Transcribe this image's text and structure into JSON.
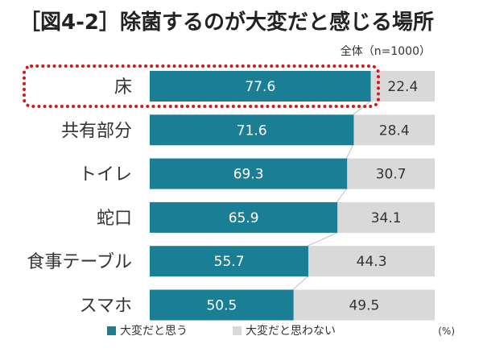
{
  "chart_data": {
    "type": "bar",
    "stacked": true,
    "orientation": "horizontal",
    "title": "［図4-2］除菌するのが大変だと感じる場所",
    "note": "全体（n=1000）",
    "unit": "(%)",
    "categories": [
      "床",
      "共有部分",
      "トイレ",
      "蛇口",
      "食事テーブル",
      "スマホ"
    ],
    "series": [
      {
        "name": "大変だと思う",
        "color": "#1a7f95",
        "values": [
          77.6,
          71.6,
          69.3,
          65.9,
          55.7,
          50.5
        ]
      },
      {
        "name": "大変だと思わない",
        "color": "#d9d9d9",
        "values": [
          22.4,
          28.4,
          30.7,
          34.1,
          44.3,
          49.5
        ]
      }
    ],
    "xlim": [
      0,
      100
    ],
    "legend": "bottom",
    "highlight_color": "#cc1e1e"
  }
}
